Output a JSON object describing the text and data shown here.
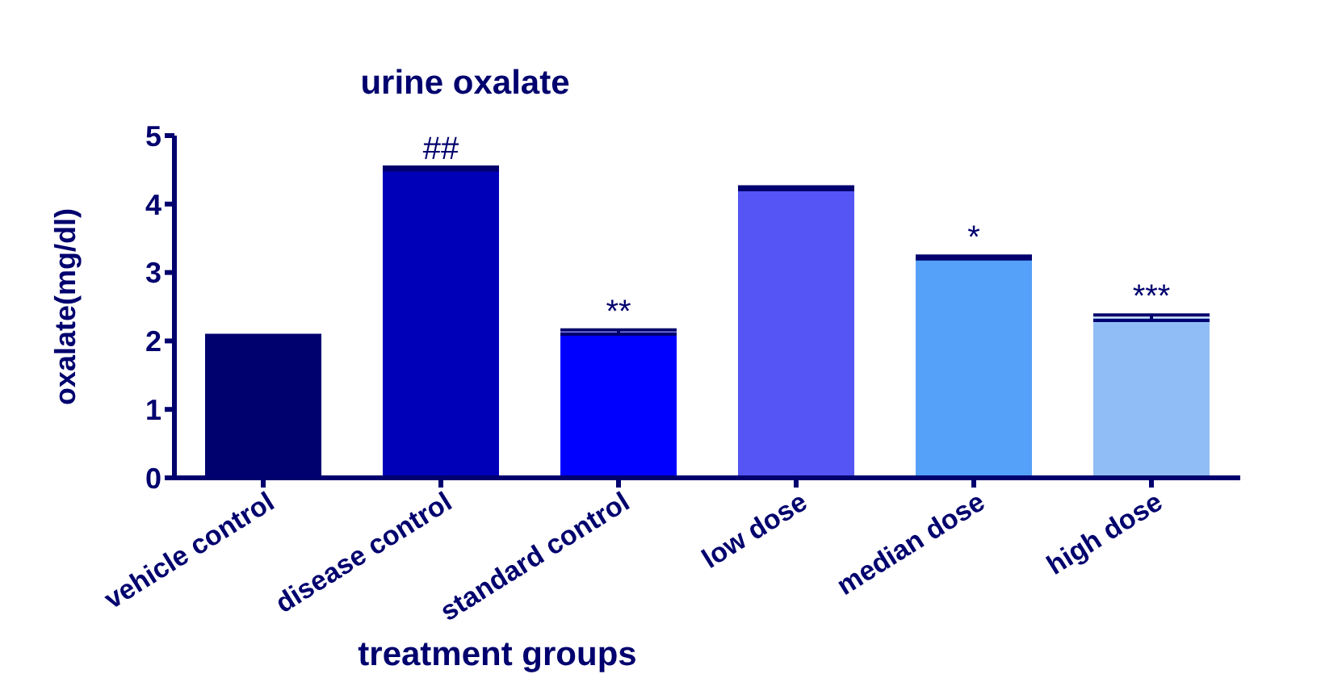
{
  "chart_data": {
    "type": "bar",
    "title": "urine oxalate",
    "xlabel": "treatment groups",
    "ylabel": "oxalate(mg/dl)",
    "categories": [
      "vehicle  control",
      "disease  control",
      "standard control",
      "low dose",
      "median dose",
      "high dose"
    ],
    "values": [
      2.06,
      4.52,
      2.13,
      4.23,
      3.22,
      2.34
    ],
    "errors": [
      0.02,
      0.02,
      0.03,
      0.02,
      0.02,
      0.04
    ],
    "colors": [
      "#00006e",
      "#0000b8",
      "#0000ff",
      "#5555f5",
      "#55a0f8",
      "#90bdf5"
    ],
    "ylim": [
      0,
      5
    ],
    "yticks": [
      0,
      1,
      2,
      3,
      4,
      5
    ],
    "grid": false,
    "legend": false,
    "annotations": [
      {
        "text": "##",
        "x": "disease  control",
        "y": 4.54
      },
      {
        "text": "**",
        "x": "standard control",
        "y": 2.16
      },
      {
        "text": "*",
        "x": "median dose",
        "y": 3.24
      },
      {
        "text": "***",
        "x": "high dose",
        "y": 2.38
      }
    ]
  }
}
